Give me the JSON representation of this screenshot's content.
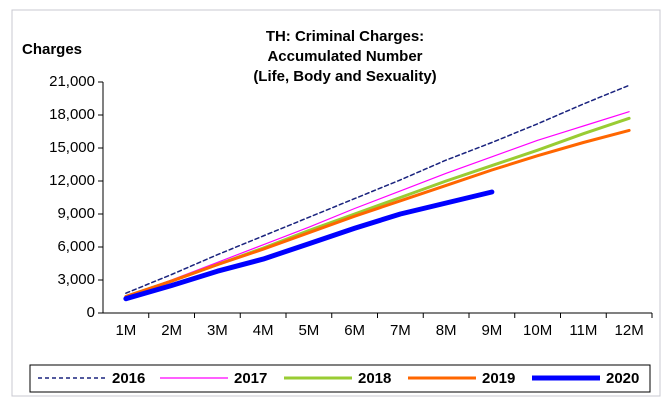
{
  "chart_data": {
    "type": "line",
    "title": [
      "TH: Criminal Charges:",
      "Accumulated Number",
      "(Life, Body and Sexuality)"
    ],
    "y_label": "Charges",
    "categories": [
      "1M",
      "2M",
      "3M",
      "4M",
      "5M",
      "6M",
      "7M",
      "8M",
      "9M",
      "10M",
      "11M",
      "12M"
    ],
    "series": [
      {
        "name": "2016",
        "color": "#1a237e",
        "style": "dashed",
        "width": 1.5,
        "values": [
          1800,
          3500,
          5300,
          7000,
          8700,
          10400,
          12100,
          13900,
          15500,
          17200,
          19000,
          20700
        ]
      },
      {
        "name": "2017",
        "color": "#ff00ff",
        "style": "solid",
        "width": 1.2,
        "values": [
          1500,
          3000,
          4600,
          6200,
          7800,
          9500,
          11100,
          12700,
          14200,
          15700,
          17000,
          18300
        ]
      },
      {
        "name": "2018",
        "color": "#99cc33",
        "style": "solid",
        "width": 3,
        "values": [
          1500,
          2900,
          4400,
          5900,
          7500,
          9000,
          10500,
          12000,
          13400,
          14800,
          16300,
          17700
        ]
      },
      {
        "name": "2019",
        "color": "#ff6600",
        "style": "solid",
        "width": 3,
        "values": [
          1500,
          2900,
          4400,
          5800,
          7300,
          8800,
          10200,
          11600,
          13000,
          14300,
          15500,
          16600
        ]
      },
      {
        "name": "2020",
        "color": "#0000ff",
        "style": "solid",
        "width": 5,
        "values": [
          1300,
          2500,
          3800,
          4900,
          6300,
          7700,
          9000,
          10000,
          11000,
          null,
          null,
          null
        ]
      }
    ],
    "ylim": [
      0,
      21000
    ],
    "yticks": [
      0,
      {
        "value": 3000,
        "label": "3,000"
      },
      {
        "value": 6000,
        "label": "6,000"
      },
      {
        "value": 9000,
        "label": "9,000"
      },
      {
        "value": 12000,
        "label": "12,000"
      },
      {
        "value": 15000,
        "label": "15,000"
      },
      {
        "value": 18000,
        "label": "18,000"
      },
      {
        "value": 21000,
        "label": "21,000"
      }
    ],
    "legend": "bottom"
  }
}
